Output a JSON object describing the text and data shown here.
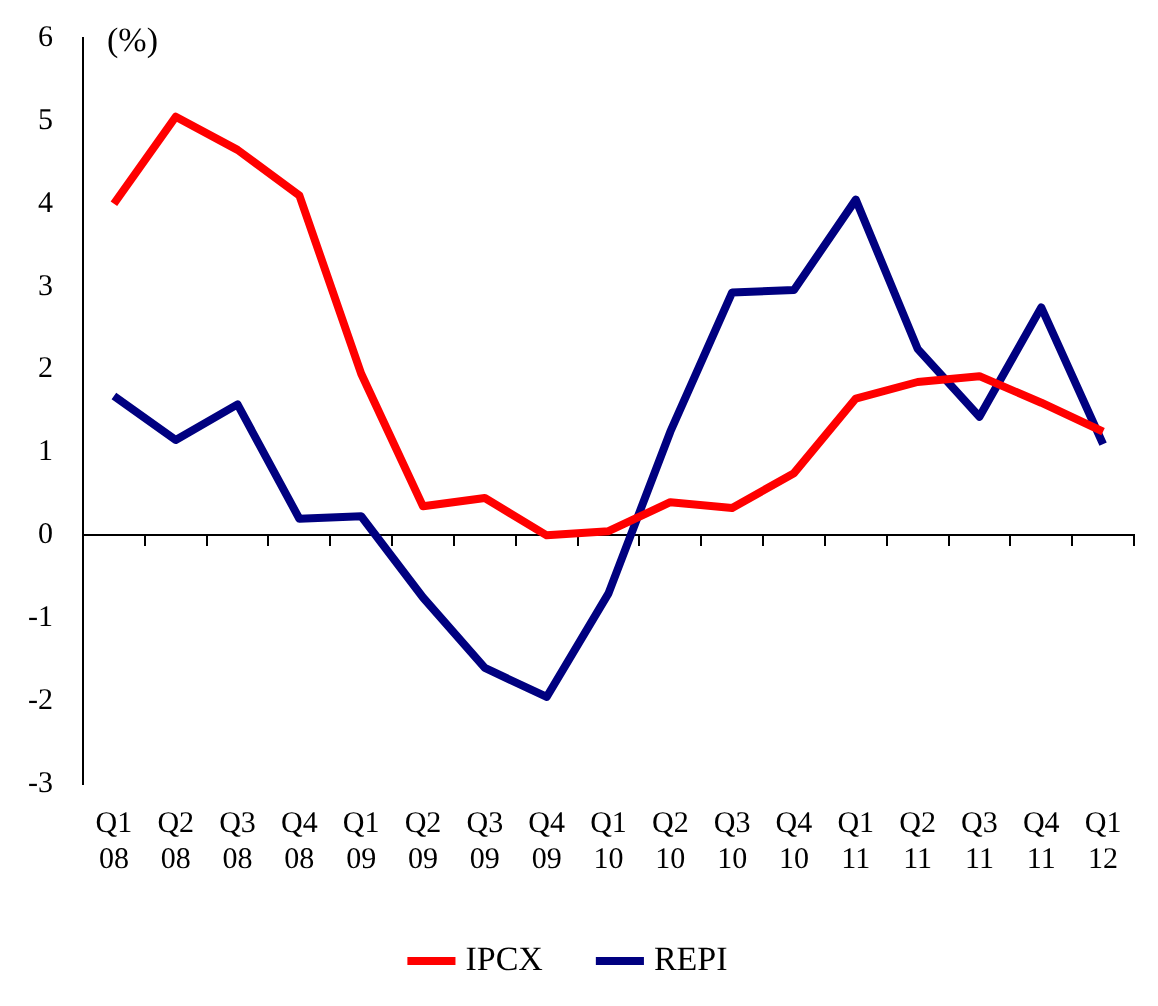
{
  "chart_data": {
    "type": "line",
    "ylabel": "(%)",
    "categories": [
      "Q1 08",
      "Q2 08",
      "Q3 08",
      "Q4 08",
      "Q1 09",
      "Q2 09",
      "Q3 09",
      "Q4 09",
      "Q1 10",
      "Q2 10",
      "Q3 10",
      "Q4 10",
      "Q1 11",
      "Q2 11",
      "Q3 11",
      "Q4 11",
      "Q1 12"
    ],
    "series": [
      {
        "name": "IPCX",
        "color": "#ff0000",
        "values": [
          4.0,
          5.05,
          4.65,
          4.1,
          1.95,
          0.35,
          0.45,
          0.0,
          0.05,
          0.4,
          0.33,
          0.75,
          1.65,
          1.85,
          1.92,
          1.6,
          1.25
        ]
      },
      {
        "name": "REPI",
        "color": "#000080",
        "values": [
          1.68,
          1.15,
          1.58,
          0.2,
          0.23,
          -0.75,
          -1.6,
          -1.95,
          -0.7,
          1.25,
          2.93,
          2.96,
          4.05,
          2.25,
          1.43,
          2.75,
          1.1
        ]
      }
    ],
    "ylim": [
      -3,
      6
    ],
    "yticks": [
      -3,
      -2,
      -1,
      0,
      1,
      2,
      3,
      4,
      5,
      6
    ],
    "legend": "bottom",
    "marker": "none",
    "line_style": "solid"
  }
}
